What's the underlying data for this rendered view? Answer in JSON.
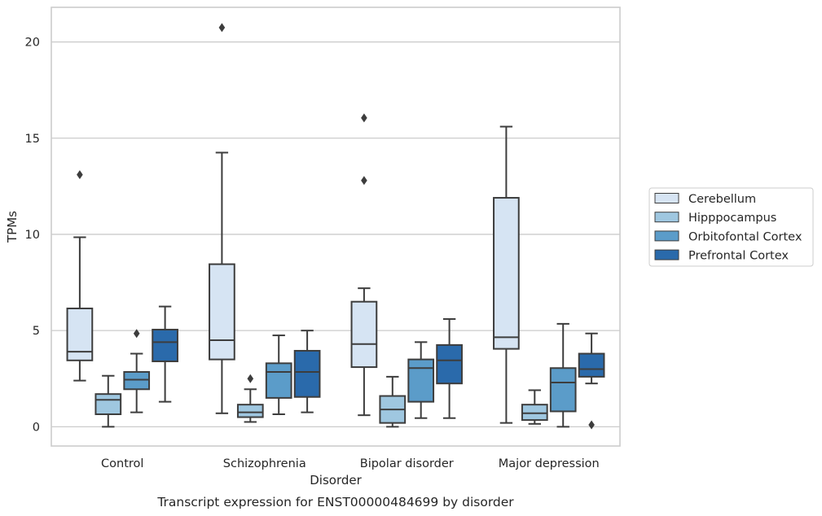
{
  "chart_data": {
    "type": "boxplot",
    "caption": "Transcript expression for ENST00000484699 by disorder",
    "xlabel": "Disorder",
    "ylabel": "TPMs",
    "ylim": [
      -1,
      21.8
    ],
    "yticks": [
      0,
      5,
      10,
      15,
      20
    ],
    "grid": "horizontal",
    "legend_placement": "right",
    "categories": [
      "Control",
      "Schizophrenia",
      "Bipolar disorder",
      "Major depression"
    ],
    "series": [
      {
        "name": "Cerebellum",
        "color": "#d6e4f3",
        "boxes": [
          {
            "whislo": 2.4,
            "q1": 3.45,
            "med": 3.9,
            "q3": 6.15,
            "whishi": 9.85,
            "fliers": [
              13.1
            ]
          },
          {
            "whislo": 0.7,
            "q1": 3.5,
            "med": 4.5,
            "q3": 8.45,
            "whishi": 14.25,
            "fliers": [
              20.75
            ]
          },
          {
            "whislo": 0.6,
            "q1": 3.1,
            "med": 4.3,
            "q3": 6.5,
            "whishi": 7.2,
            "fliers": [
              16.05,
              12.8
            ]
          },
          {
            "whislo": 0.2,
            "q1": 4.05,
            "med": 4.65,
            "q3": 11.9,
            "whishi": 15.6,
            "fliers": []
          }
        ]
      },
      {
        "name": "Hipppocampus",
        "color": "#9fc7e0",
        "boxes": [
          {
            "whislo": 0.0,
            "q1": 0.65,
            "med": 1.4,
            "q3": 1.7,
            "whishi": 2.65,
            "fliers": []
          },
          {
            "whislo": 0.25,
            "q1": 0.5,
            "med": 0.75,
            "q3": 1.15,
            "whishi": 1.95,
            "fliers": [
              2.5
            ]
          },
          {
            "whislo": 0.0,
            "q1": 0.2,
            "med": 0.9,
            "q3": 1.6,
            "whishi": 2.6,
            "fliers": []
          },
          {
            "whislo": 0.15,
            "q1": 0.35,
            "med": 0.7,
            "q3": 1.15,
            "whishi": 1.9,
            "fliers": []
          }
        ]
      },
      {
        "name": "Orbitofontal Cortex",
        "color": "#5b9cc9",
        "boxes": [
          {
            "whislo": 0.75,
            "q1": 1.95,
            "med": 2.45,
            "q3": 2.85,
            "whishi": 3.8,
            "fliers": [
              4.85
            ]
          },
          {
            "whislo": 0.65,
            "q1": 1.5,
            "med": 2.85,
            "q3": 3.3,
            "whishi": 4.75,
            "fliers": []
          },
          {
            "whislo": 0.45,
            "q1": 1.3,
            "med": 3.05,
            "q3": 3.5,
            "whishi": 4.4,
            "fliers": []
          },
          {
            "whislo": 0.0,
            "q1": 0.8,
            "med": 2.3,
            "q3": 3.05,
            "whishi": 5.35,
            "fliers": []
          }
        ]
      },
      {
        "name": "Prefrontal Cortex",
        "color": "#2a6aab",
        "boxes": [
          {
            "whislo": 1.3,
            "q1": 3.4,
            "med": 4.4,
            "q3": 5.05,
            "whishi": 6.25,
            "fliers": []
          },
          {
            "whislo": 0.75,
            "q1": 1.55,
            "med": 2.85,
            "q3": 3.95,
            "whishi": 5.0,
            "fliers": []
          },
          {
            "whislo": 0.45,
            "q1": 2.25,
            "med": 3.45,
            "q3": 4.25,
            "whishi": 5.6,
            "fliers": []
          },
          {
            "whislo": 2.25,
            "q1": 2.6,
            "med": 3.0,
            "q3": 3.8,
            "whishi": 4.85,
            "fliers": [
              0.1
            ]
          }
        ]
      }
    ]
  }
}
